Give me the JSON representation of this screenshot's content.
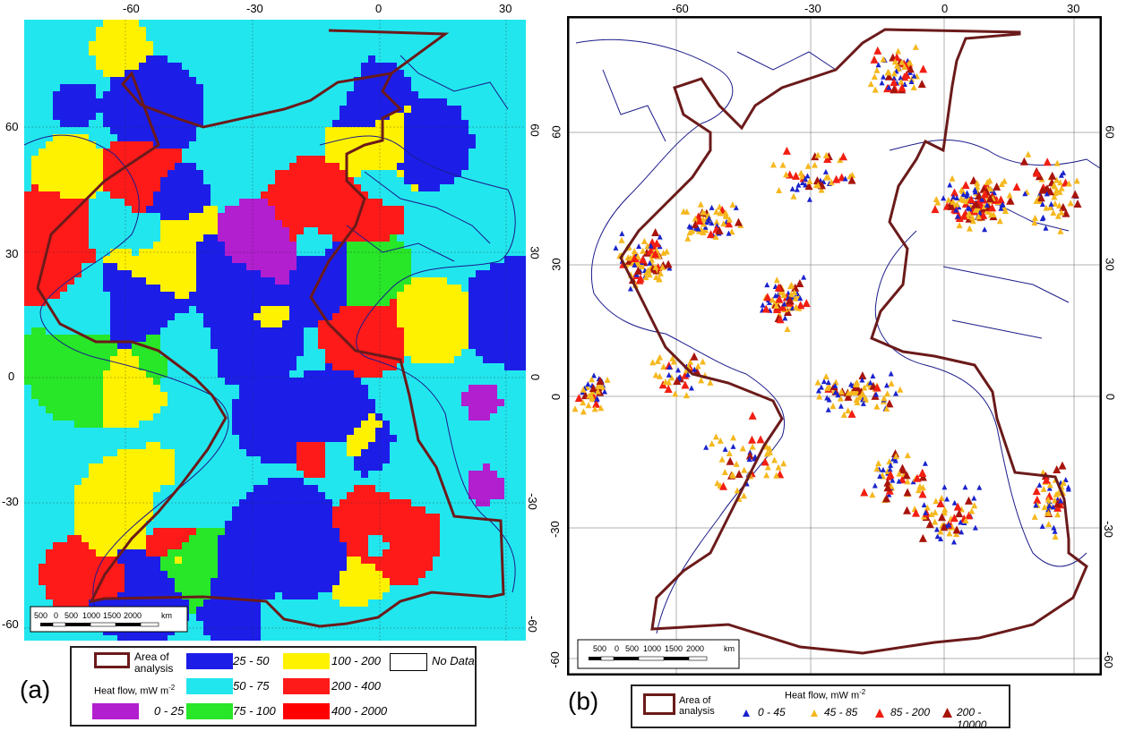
{
  "colors": {
    "c0_25": "#b11fcf",
    "c25_50": "#1c1ee8",
    "c50_75": "#22e6ee",
    "c75_100": "#28e628",
    "c100_200": "#fff200",
    "c200_400": "#ff1a1a",
    "c400_2000": "#ff0000",
    "area": "#6b1a1a",
    "pt_blue": "#1a22cc",
    "pt_orange": "#f5b81e",
    "pt_red": "#f21e12",
    "pt_darkred": "#a8140c",
    "coast": "#1b1b8a",
    "border": "#222222"
  },
  "panel_a": {
    "label": "(a)",
    "top_ticks": [
      "-60",
      "-30",
      "0",
      "30"
    ],
    "left_ticks": [
      "60",
      "30",
      "0",
      "-30",
      "-60"
    ],
    "right_ticks": [
      "60",
      "30",
      "0",
      "-30",
      "-60"
    ],
    "scale": {
      "labels": [
        "500",
        "0",
        "500",
        "1000",
        "1500",
        "2000"
      ],
      "unit": "km"
    },
    "legend": {
      "area_label": "Area of analysis",
      "heat_flow_label": "Heat flow, mW m",
      "heat_flow_sup": "-2",
      "classes": [
        "0 - 25",
        "25 - 50",
        "50 - 75",
        "75 - 100",
        "100 - 200",
        "200 - 400",
        "400 - 2000"
      ],
      "nodata": "No Data"
    }
  },
  "panel_b": {
    "label": "(b)",
    "top_ticks": [
      "-60",
      "-30",
      "0",
      "30"
    ],
    "left_ticks": [
      "60",
      "30",
      "0",
      "-30",
      "-60"
    ],
    "right_ticks": [
      "60",
      "30",
      "0",
      "-30",
      "-60"
    ],
    "scale": {
      "labels": [
        "500",
        "0",
        "500",
        "1000",
        "1500",
        "2000"
      ],
      "unit": "km"
    },
    "legend": {
      "area_label": "Area of analysis",
      "heat_flow_label": "Heat flow, mW m",
      "heat_flow_sup": "-2",
      "classes": [
        "0 - 45",
        "45 - 85",
        "85 - 200",
        "200 - 10000"
      ]
    }
  }
}
